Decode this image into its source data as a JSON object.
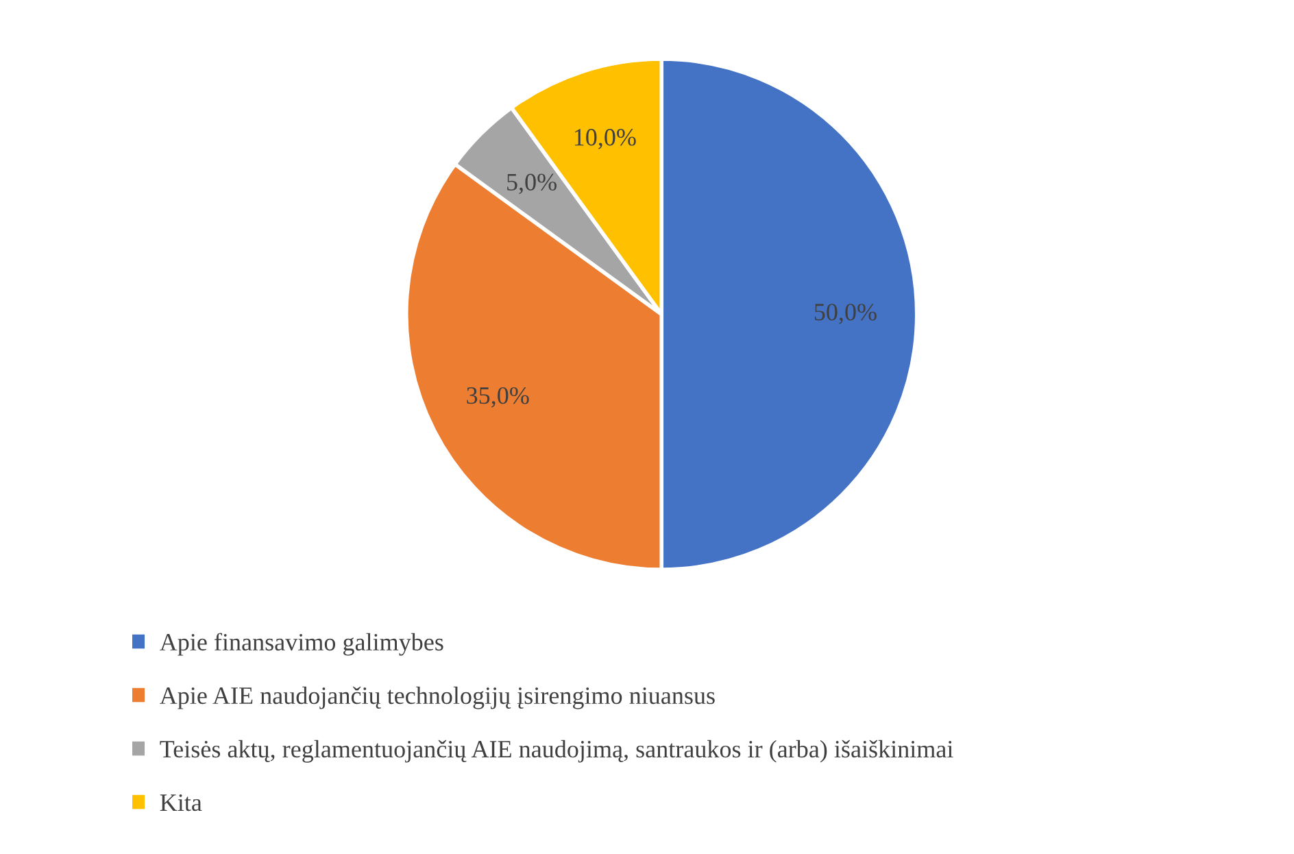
{
  "chart_data": {
    "type": "pie",
    "categories": [
      "Apie finansavimo galimybes",
      "Apie AIE naudojančių technologijų įsirengimo niuansus",
      "Teisės aktų, reglamentuojančių AIE naudojimą, santraukos ir (arba) išaiškinimai",
      "Kita"
    ],
    "values": [
      50,
      35,
      5,
      10
    ],
    "colors": [
      "#4472c4",
      "#ed7d31",
      "#a5a5a5",
      "#ffc000"
    ],
    "value_labels": [
      "50,0%",
      "35,0%",
      "5,0%",
      "10,0%"
    ],
    "legend": "bottom"
  }
}
